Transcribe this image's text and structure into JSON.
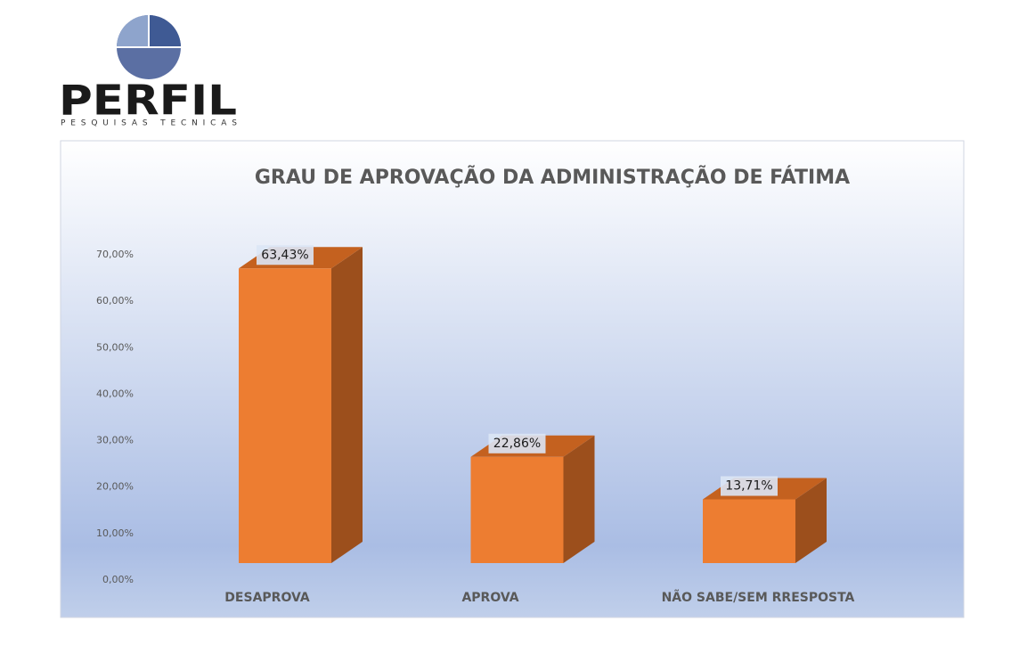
{
  "logo": {
    "name": "PERFIL",
    "tagline": "PESQUISAS TECNICAS"
  },
  "chart_data": {
    "type": "bar3d",
    "title": "GRAU DE APROVAÇÃO DA ADMINISTRAÇÃO DE FÁTIMA",
    "categories": [
      "DESAPROVA",
      "APROVA",
      "NÃO SABE/SEM RRESPOSTA"
    ],
    "values": [
      63.43,
      22.86,
      13.71
    ],
    "value_labels": [
      "63,43%",
      "22,86%",
      "13,71%"
    ],
    "color": "#ed7d31",
    "ylim": [
      0,
      70
    ],
    "yticks": [
      {
        "value": 0,
        "label": "0,00%"
      },
      {
        "value": 10,
        "label": "10,00%"
      },
      {
        "value": 20,
        "label": "20,00%"
      },
      {
        "value": 30,
        "label": "30,00%"
      },
      {
        "value": 40,
        "label": "40,00%"
      },
      {
        "value": 50,
        "label": "50,00%"
      },
      {
        "value": 60,
        "label": "60,00%"
      },
      {
        "value": 70,
        "label": "70,00%"
      }
    ],
    "grid": false
  }
}
